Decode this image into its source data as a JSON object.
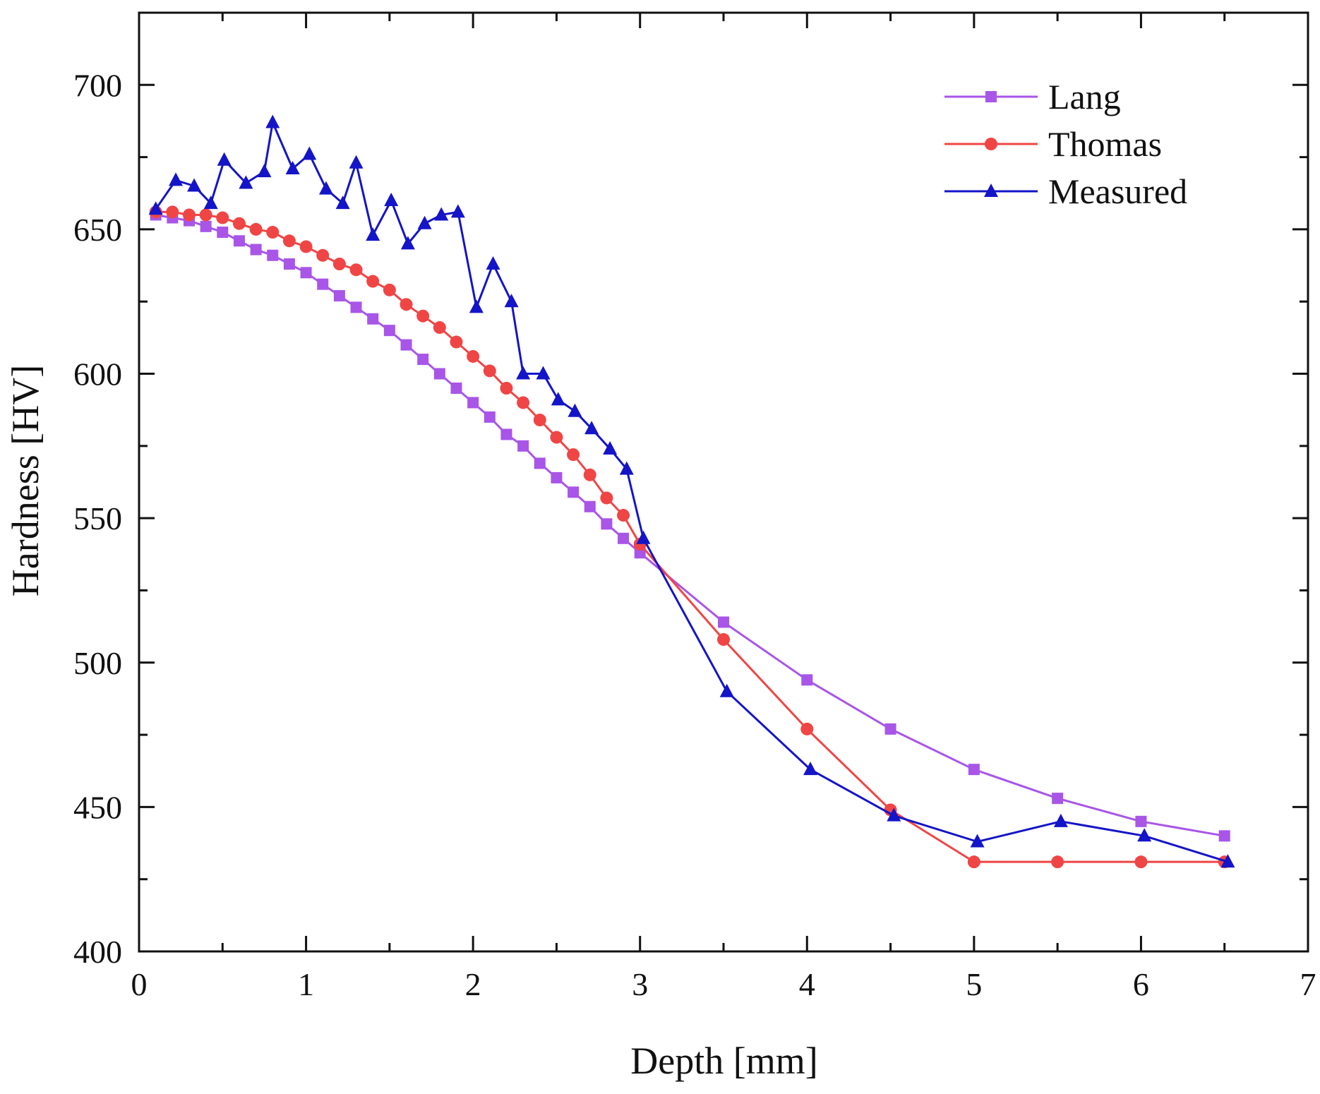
{
  "chart_data": {
    "type": "line",
    "title": "",
    "xlabel": "Depth [mm]",
    "ylabel": "Hardness [HV]",
    "xlim": [
      0,
      7
    ],
    "ylim": [
      400,
      725
    ],
    "xticks": [
      0,
      1,
      2,
      3,
      4,
      5,
      6,
      7
    ],
    "yticks": [
      400,
      450,
      500,
      550,
      600,
      650,
      700
    ],
    "legend_position": "top-right",
    "series": [
      {
        "name": "Lang",
        "color": "#a855e8",
        "marker": "square",
        "x": [
          0.1,
          0.2,
          0.3,
          0.4,
          0.5,
          0.6,
          0.7,
          0.8,
          0.9,
          1.0,
          1.1,
          1.2,
          1.3,
          1.4,
          1.5,
          1.6,
          1.7,
          1.8,
          1.9,
          2.0,
          2.1,
          2.2,
          2.3,
          2.4,
          2.5,
          2.6,
          2.7,
          2.8,
          2.9,
          3.0,
          3.5,
          4.0,
          4.5,
          5.0,
          5.5,
          6.0,
          6.5
        ],
        "y": [
          655,
          654,
          653,
          651,
          649,
          646,
          643,
          641,
          638,
          635,
          631,
          627,
          623,
          619,
          615,
          610,
          605,
          600,
          595,
          590,
          585,
          579,
          575,
          569,
          564,
          559,
          554,
          548,
          543,
          538,
          514,
          494,
          477,
          463,
          453,
          445,
          440
        ]
      },
      {
        "name": "Thomas",
        "color": "#f04545",
        "marker": "circle",
        "x": [
          0.1,
          0.2,
          0.3,
          0.4,
          0.5,
          0.6,
          0.7,
          0.8,
          0.9,
          1.0,
          1.1,
          1.2,
          1.3,
          1.4,
          1.5,
          1.6,
          1.7,
          1.8,
          1.9,
          2.0,
          2.1,
          2.2,
          2.3,
          2.4,
          2.5,
          2.6,
          2.7,
          2.8,
          2.9,
          3.0,
          3.5,
          4.0,
          4.5,
          5.0,
          5.5,
          6.0,
          6.5
        ],
        "y": [
          656,
          656,
          655,
          655,
          654,
          652,
          650,
          649,
          646,
          644,
          641,
          638,
          636,
          632,
          629,
          624,
          620,
          616,
          611,
          606,
          601,
          595,
          590,
          584,
          578,
          572,
          565,
          557,
          551,
          541,
          508,
          477,
          449,
          431,
          431,
          431,
          431
        ]
      },
      {
        "name": "Measured",
        "color": "#1414c8",
        "marker": "triangle",
        "x": [
          0.1,
          0.22,
          0.33,
          0.43,
          0.51,
          0.64,
          0.75,
          0.8,
          0.92,
          1.02,
          1.12,
          1.22,
          1.3,
          1.4,
          1.51,
          1.61,
          1.71,
          1.81,
          1.91,
          2.02,
          2.12,
          2.23,
          2.3,
          2.42,
          2.51,
          2.61,
          2.71,
          2.82,
          2.92,
          3.02,
          3.52,
          4.02,
          4.52,
          5.02,
          5.52,
          6.02,
          6.52
        ],
        "y": [
          657,
          667,
          665,
          659,
          674,
          666,
          670,
          687,
          671,
          676,
          664,
          659,
          673,
          648,
          660,
          645,
          652,
          655,
          656,
          623,
          638,
          625,
          600,
          600,
          591,
          587,
          581,
          574,
          567,
          543,
          490,
          463,
          447,
          438,
          445,
          440,
          431
        ]
      }
    ]
  }
}
